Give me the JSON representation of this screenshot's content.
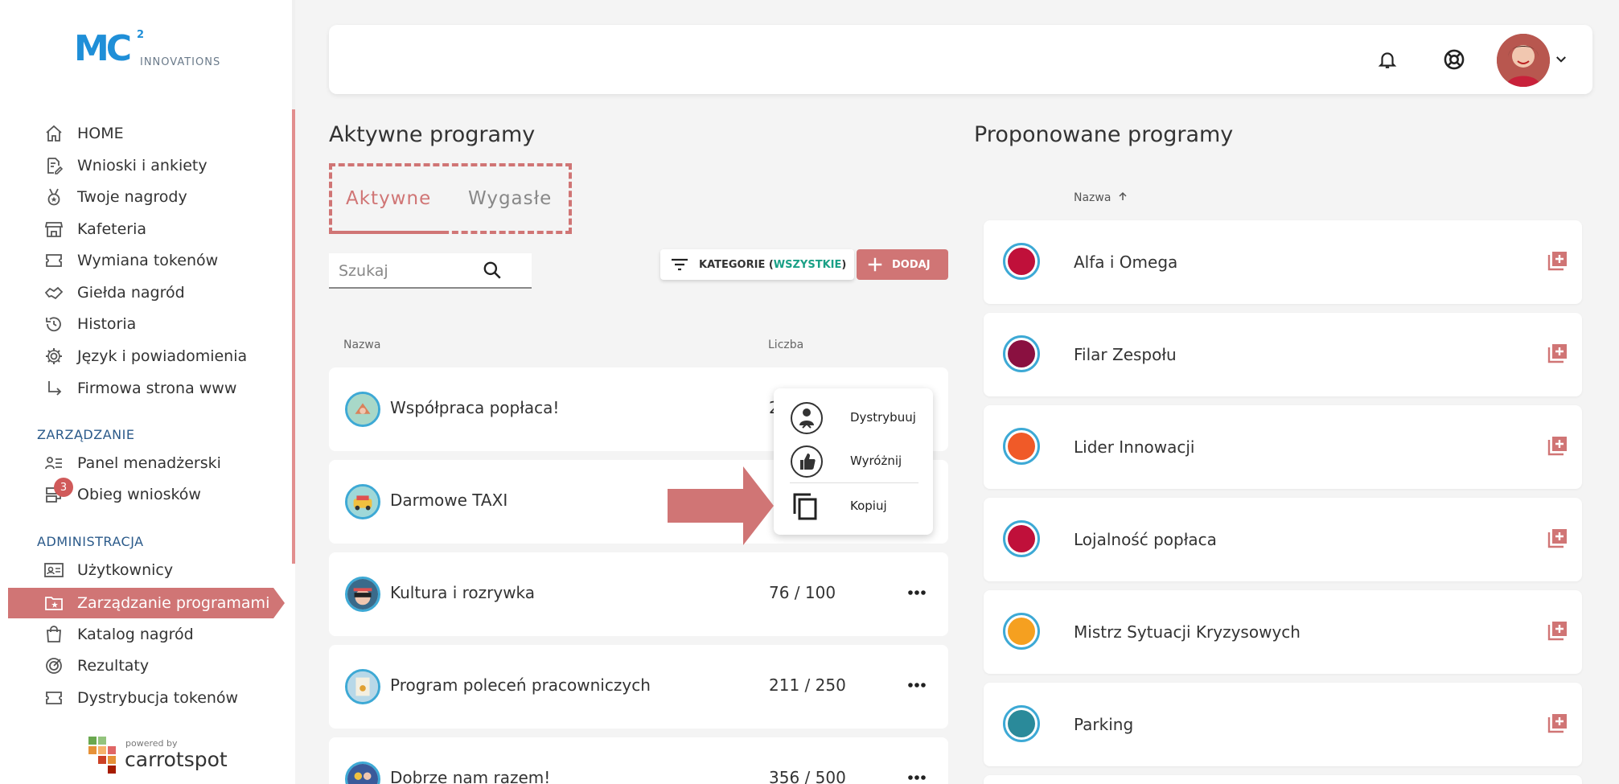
{
  "brand": {
    "logo_text": "MC",
    "logo_sup": "2",
    "logo_sub": "INNOVATIONS",
    "accent_color": "#d07575",
    "blue_color": "#1f8fd8"
  },
  "sidebar": {
    "items": [
      {
        "label": "HOME",
        "icon": "home-icon"
      },
      {
        "label": "Wnioski i ankiety",
        "icon": "document-edit-icon"
      },
      {
        "label": "Twoje nagrody",
        "icon": "medal-icon"
      },
      {
        "label": "Kafeteria",
        "icon": "store-icon"
      },
      {
        "label": "Wymiana tokenów",
        "icon": "ticket-icon"
      },
      {
        "label": "Giełda nagród",
        "icon": "handshake-icon"
      },
      {
        "label": "Historia",
        "icon": "history-icon"
      },
      {
        "label": "Język i powiadomienia",
        "icon": "gear-icon"
      },
      {
        "label": "Firmowa strona www",
        "icon": "arrow-subdirectory-icon"
      }
    ],
    "section_management": "ZARZĄDZANIE",
    "management_items": [
      {
        "label": "Panel menadżerski",
        "icon": "manager-list-icon"
      },
      {
        "label": "Obieg wniosków",
        "icon": "workflow-icon",
        "badge": "3"
      }
    ],
    "section_admin": "ADMINISTRACJA",
    "admin_items": [
      {
        "label": "Użytkownicy",
        "icon": "id-card-icon"
      },
      {
        "label": "Zarządzanie programami",
        "icon": "folder-star-icon",
        "active": true
      },
      {
        "label": "Katalog nagród",
        "icon": "shopping-bag-icon"
      },
      {
        "label": "Rezultaty",
        "icon": "target-icon"
      },
      {
        "label": "Dystrybucja tokenów",
        "icon": "ticket-icon"
      }
    ],
    "powered_small": "powered by",
    "powered_big": "carrotspot"
  },
  "header": {
    "bell_icon": "bell-icon",
    "help_icon": "lifebuoy-icon",
    "avatar_icon": "avatar",
    "dropdown_icon": "chevron-down-icon"
  },
  "active_programs": {
    "title": "Aktywne programy",
    "tabs": [
      {
        "label": "Aktywne",
        "active": true
      },
      {
        "label": "Wygasłe",
        "active": false
      }
    ],
    "search_placeholder": "Szukaj",
    "categories_label": "KATEGORIE (",
    "categories_value": "WSZYSTKIE",
    "categories_close": ")",
    "add_label": "DODAJ",
    "col_name": "Nazwa",
    "col_count": "Liczba",
    "rows": [
      {
        "name": "Współpraca popłaca!",
        "count": "2",
        "icon_color": "#a8d8c8"
      },
      {
        "name": "Darmowe TAXI",
        "count": "",
        "icon_color": "#f0c040"
      },
      {
        "name": "Kultura i rozrywka",
        "count": "76 / 100",
        "icon_color": "#3a6a8a"
      },
      {
        "name": "Program poleceń pracowniczych",
        "count": "211 / 250",
        "icon_color": "#e8e0c8"
      },
      {
        "name": "Dobrze nam razem!",
        "count": "356 / 500",
        "icon_color": "#3a5a9a"
      }
    ]
  },
  "context_menu": {
    "items": [
      {
        "label": "Dystrybuuj",
        "icon": "distribute-icon"
      },
      {
        "label": "Wyróżnij",
        "icon": "thumbs-up-icon"
      },
      {
        "label": "Kopiuj",
        "icon": "copy-icon"
      }
    ]
  },
  "proposed_programs": {
    "title": "Proponowane programy",
    "col_name": "Nazwa",
    "sort_icon": "arrow-up-icon",
    "rows": [
      {
        "name": "Alfa i Omega",
        "color": "#c0103a"
      },
      {
        "name": "Filar Zespołu",
        "color": "#8a1040"
      },
      {
        "name": "Lider Innowacji",
        "color": "#f05a28"
      },
      {
        "name": "Lojalność popłaca",
        "color": "#c0103a"
      },
      {
        "name": "Mistrz Sytuacji Kryzysowych",
        "color": "#f5a020"
      },
      {
        "name": "Parking",
        "color": "#2a8a9a"
      }
    ]
  }
}
